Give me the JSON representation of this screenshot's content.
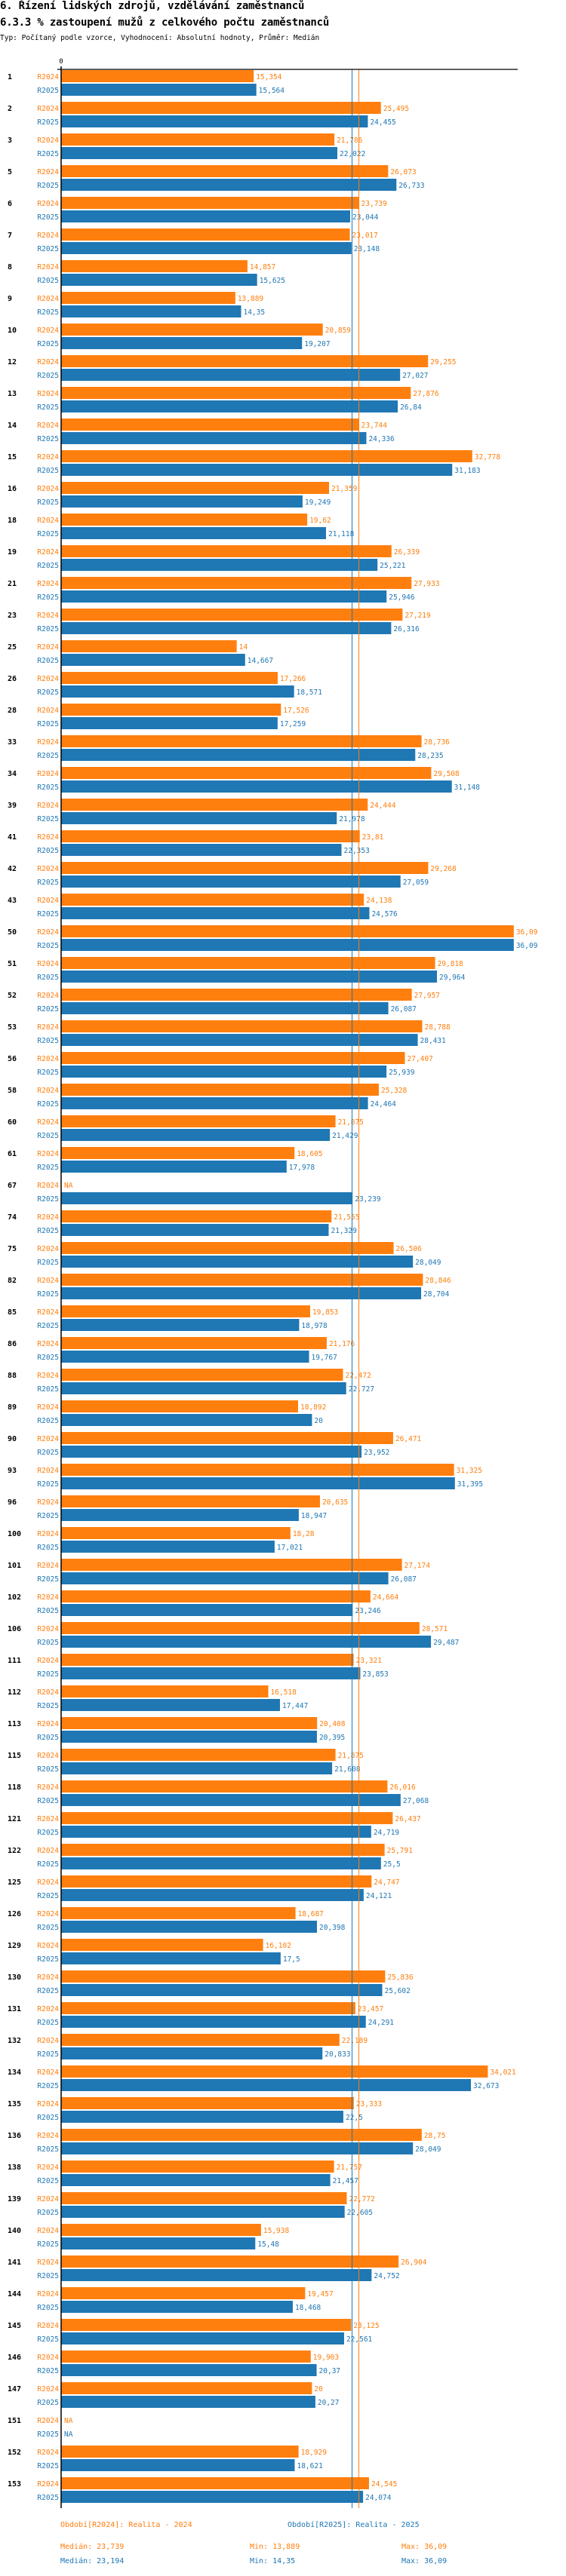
{
  "header": {
    "title": "6. Řízení lidských zdrojů, vzdělávání zaměstnanců",
    "subtitle": "6.3.3 % zastoupení mužů z celkového počtu zaměstnanců",
    "meta": "Typ: Počítaný podle vzorce, Vyhodnocení: Absolutní hodnoty, Průměr: Medián"
  },
  "colors": {
    "r2024": "#ff7f0e",
    "r2025": "#1f77b4",
    "axis": "#000000"
  },
  "legend": {
    "r2024_label": "Období[R2024]: Realita - 2024",
    "r2025_label": "Období[R2025]: Realita - 2025",
    "r2024_median": "Medián: 23,739",
    "r2024_min": "Min: 13,889",
    "r2024_max": "Max: 36,09",
    "r2025_median": "Medián: 23,194",
    "r2025_min": "Min: 14,35",
    "r2025_max": "Max: 36,09"
  },
  "chart_data": {
    "type": "bar",
    "orientation": "horizontal",
    "title": "6.3.3 % zastoupení mužů z celkového počtu zaměstnanců",
    "xlabel": "",
    "ylabel": "",
    "x_tick_labels": [
      "0"
    ],
    "xlim": [
      0,
      36.09
    ],
    "grid": false,
    "legend_position": "bottom",
    "series_names": [
      "R2024",
      "R2025"
    ],
    "reference_lines": [
      {
        "name": "Medián R2024",
        "series": "R2024",
        "value": 23.739
      },
      {
        "name": "Medián R2025",
        "series": "R2025",
        "value": 23.194
      }
    ],
    "categories": [
      "1",
      "2",
      "3",
      "5",
      "6",
      "7",
      "8",
      "9",
      "10",
      "12",
      "13",
      "14",
      "15",
      "16",
      "18",
      "19",
      "21",
      "23",
      "25",
      "26",
      "28",
      "33",
      "34",
      "39",
      "41",
      "42",
      "43",
      "50",
      "51",
      "52",
      "53",
      "56",
      "58",
      "60",
      "61",
      "67",
      "74",
      "75",
      "82",
      "85",
      "86",
      "88",
      "89",
      "90",
      "93",
      "96",
      "100",
      "101",
      "102",
      "106",
      "111",
      "112",
      "113",
      "115",
      "118",
      "121",
      "122",
      "125",
      "126",
      "129",
      "130",
      "131",
      "132",
      "134",
      "135",
      "136",
      "138",
      "139",
      "140",
      "141",
      "144",
      "145",
      "146",
      "147",
      "151",
      "152",
      "153"
    ],
    "series": [
      {
        "name": "R2024",
        "values": [
          15.354,
          25.495,
          21.786,
          26.073,
          23.739,
          23.017,
          14.857,
          13.889,
          20.859,
          29.255,
          27.876,
          23.744,
          32.778,
          21.359,
          19.62,
          26.339,
          27.933,
          27.219,
          14,
          17.266,
          17.526,
          28.736,
          29.508,
          24.444,
          23.81,
          29.268,
          24.138,
          36.09,
          29.818,
          27.957,
          28.788,
          27.407,
          25.328,
          21.875,
          18.605,
          null,
          21.555,
          26.506,
          28.846,
          19.853,
          21.176,
          22.472,
          18.892,
          26.471,
          31.325,
          20.635,
          18.28,
          27.174,
          24.664,
          28.571,
          23.321,
          16.518,
          20.408,
          21.875,
          26.016,
          26.437,
          25.791,
          24.747,
          18.687,
          16.102,
          25.836,
          23.457,
          22.189,
          34.021,
          23.333,
          28.75,
          21.757,
          22.772,
          15.938,
          26.904,
          19.457,
          23.125,
          19.903,
          20,
          null,
          18.929,
          24.545
        ],
        "labels": [
          "15,354",
          "25,495",
          "21,786",
          "26,073",
          "23,739",
          "23,017",
          "14,857",
          "13,889",
          "20,859",
          "29,255",
          "27,876",
          "23,744",
          "32,778",
          "21,359",
          "19,62",
          "26,339",
          "27,933",
          "27,219",
          "14",
          "17,266",
          "17,526",
          "28,736",
          "29,508",
          "24,444",
          "23,81",
          "29,268",
          "24,138",
          "36,09",
          "29,818",
          "27,957",
          "28,788",
          "27,407",
          "25,328",
          "21,875",
          "18,605",
          "NA",
          "21,555",
          "26,506",
          "28,846",
          "19,853",
          "21,176",
          "22,472",
          "18,892",
          "26,471",
          "31,325",
          "20,635",
          "18,28",
          "27,174",
          "24,664",
          "28,571",
          "23,321",
          "16,518",
          "20,408",
          "21,875",
          "26,016",
          "26,437",
          "25,791",
          "24,747",
          "18,687",
          "16,102",
          "25,836",
          "23,457",
          "22,189",
          "34,021",
          "23,333",
          "28,75",
          "21,757",
          "22,772",
          "15,938",
          "26,904",
          "19,457",
          "23,125",
          "19,903",
          "20",
          "NA",
          "18,929",
          "24,545"
        ]
      },
      {
        "name": "R2025",
        "values": [
          15.564,
          24.455,
          22.022,
          26.733,
          23.044,
          23.148,
          15.625,
          14.35,
          19.207,
          27.027,
          26.84,
          24.336,
          31.183,
          19.249,
          21.118,
          25.221,
          25.946,
          26.316,
          14.667,
          18.571,
          17.259,
          28.235,
          31.148,
          21.978,
          22.353,
          27.059,
          24.576,
          36.09,
          29.964,
          26.087,
          28.431,
          25.939,
          24.464,
          21.429,
          17.978,
          23.239,
          21.329,
          28.049,
          28.704,
          18.978,
          19.767,
          22.727,
          20,
          23.952,
          31.395,
          18.947,
          17.021,
          26.087,
          23.246,
          29.487,
          23.853,
          17.447,
          20.395,
          21.608,
          27.068,
          24.719,
          25.5,
          24.121,
          20.398,
          17.5,
          25.602,
          24.291,
          20.833,
          32.673,
          22.5,
          28.049,
          21.457,
          22.605,
          15.48,
          24.752,
          18.468,
          22.561,
          20.37,
          20.27,
          null,
          18.621,
          24.074
        ],
        "labels": [
          "15,564",
          "24,455",
          "22,022",
          "26,733",
          "23,044",
          "23,148",
          "15,625",
          "14,35",
          "19,207",
          "27,027",
          "26,84",
          "24,336",
          "31,183",
          "19,249",
          "21,118",
          "25,221",
          "25,946",
          "26,316",
          "14,667",
          "18,571",
          "17,259",
          "28,235",
          "31,148",
          "21,978",
          "22,353",
          "27,059",
          "24,576",
          "36,09",
          "29,964",
          "26,087",
          "28,431",
          "25,939",
          "24,464",
          "21,429",
          "17,978",
          "23,239",
          "21,329",
          "28,049",
          "28,704",
          "18,978",
          "19,767",
          "22,727",
          "20",
          "23,952",
          "31,395",
          "18,947",
          "17,021",
          "26,087",
          "23,246",
          "29,487",
          "23,853",
          "17,447",
          "20,395",
          "21,608",
          "27,068",
          "24,719",
          "25,5",
          "24,121",
          "20,398",
          "17,5",
          "25,602",
          "24,291",
          "20,833",
          "32,673",
          "22,5",
          "28,049",
          "21,457",
          "22,605",
          "15,48",
          "24,752",
          "18,468",
          "22,561",
          "20,37",
          "20,27",
          "NA",
          "18,621",
          "24,074"
        ]
      }
    ]
  }
}
